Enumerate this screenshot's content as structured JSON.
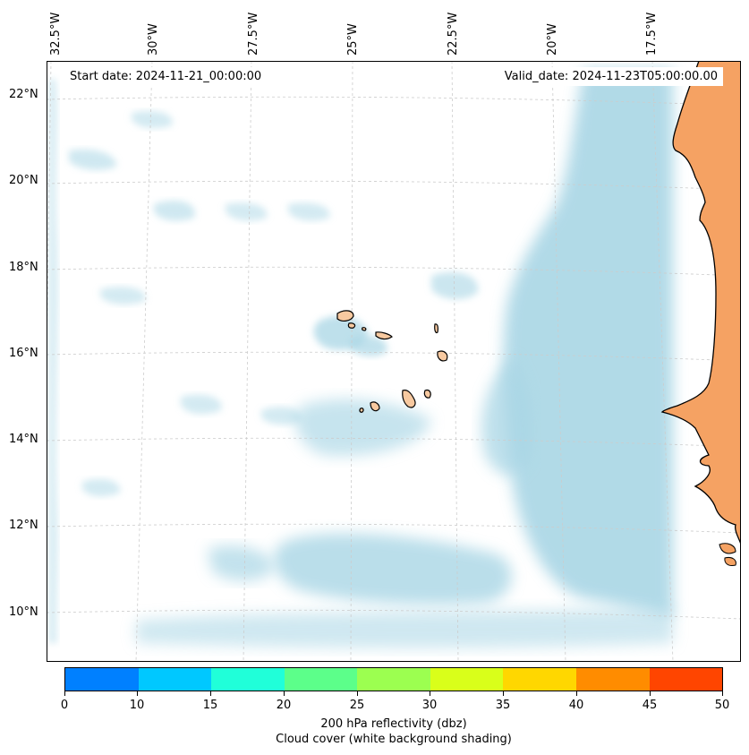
{
  "map": {
    "start_date": "Start date: 2024-11-21_00:00:00",
    "valid_date": "Valid_date: 2024-11-23T05:00:00.00",
    "lon_labels": [
      "32.5°W",
      "30°W",
      "27.5°W",
      "25°W",
      "22.5°W",
      "20°W",
      "17.5°W"
    ],
    "lat_labels": [
      "22°N",
      "20°N",
      "18°N",
      "16°N",
      "14°N",
      "12°N",
      "10°N"
    ],
    "colors": {
      "cloud": "#a9d6e5",
      "land": "#f5a263",
      "island_fill": "#f7c9a0",
      "coastline": "#000000",
      "gridline": "#cccccc"
    }
  },
  "colorbar": {
    "label_line1": "200 hPa reflectivity (dbz)",
    "label_line2": "Cloud cover (white background shading)",
    "ticks": [
      "0",
      "10",
      "15",
      "20",
      "25",
      "30",
      "35",
      "40",
      "45",
      "50"
    ],
    "colors": [
      "#0080ff",
      "#00c8ff",
      "#20ffd9",
      "#5cff8a",
      "#9cff50",
      "#d9ff1a",
      "#ffd700",
      "#ff8c00",
      "#ff4500"
    ]
  }
}
